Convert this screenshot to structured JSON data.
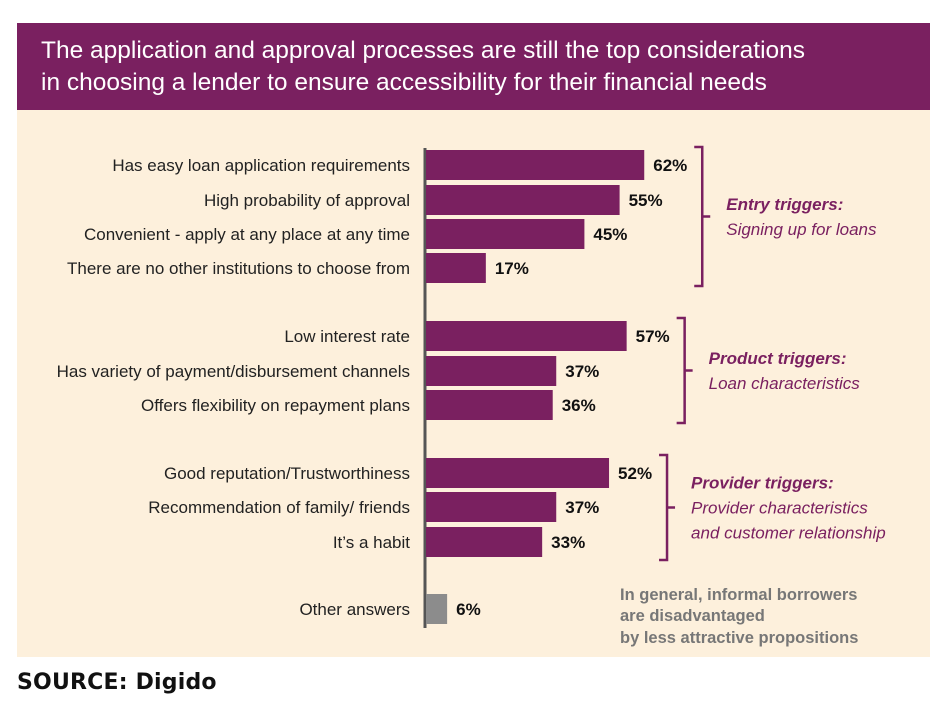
{
  "title": {
    "line1": "The application and approval processes are still the top considerations",
    "line2": "in choosing a lender to ensure accessibility for their financial needs"
  },
  "source": "SOURCE: Digido",
  "note": [
    "In general, informal borrowers",
    "are disadvantaged",
    "by less attractive propositions"
  ],
  "colors": {
    "bar": "#7a2060",
    "other_bar": "#8c8c8c",
    "background": "#fdf0dc",
    "header": "#7a2060"
  },
  "chart_data": {
    "type": "bar",
    "orientation": "horizontal",
    "unit": "%",
    "xlim": [
      0,
      100
    ],
    "grid": false,
    "categories": [
      "Has easy loan application requirements",
      "High probability of approval",
      "Convenient - apply at any place at any time",
      "There are no other institutions to choose from",
      "Low interest rate",
      "Has variety of payment/disbursement channels",
      "Offers flexibility on repayment plans",
      "Good reputation/Trustworthiness",
      "Recommendation of family/ friends",
      "It’s a habit",
      "Other answers"
    ],
    "values": [
      62,
      55,
      45,
      17,
      57,
      37,
      36,
      52,
      37,
      33,
      6
    ],
    "value_labels": [
      "62%",
      "55%",
      "45%",
      "17%",
      "57%",
      "37%",
      "36%",
      "52%",
      "37%",
      "33%",
      "6%"
    ],
    "groups": [
      {
        "title": "Entry triggers:",
        "subtitle": [
          "Signing up for loans"
        ],
        "members": [
          0,
          1,
          2,
          3
        ]
      },
      {
        "title": "Product triggers:",
        "subtitle": [
          "Loan characteristics"
        ],
        "members": [
          4,
          5,
          6
        ]
      },
      {
        "title": "Provider triggers:",
        "subtitle": [
          "Provider characteristics",
          "and customer relationship"
        ],
        "members": [
          7,
          8,
          9
        ]
      }
    ]
  }
}
